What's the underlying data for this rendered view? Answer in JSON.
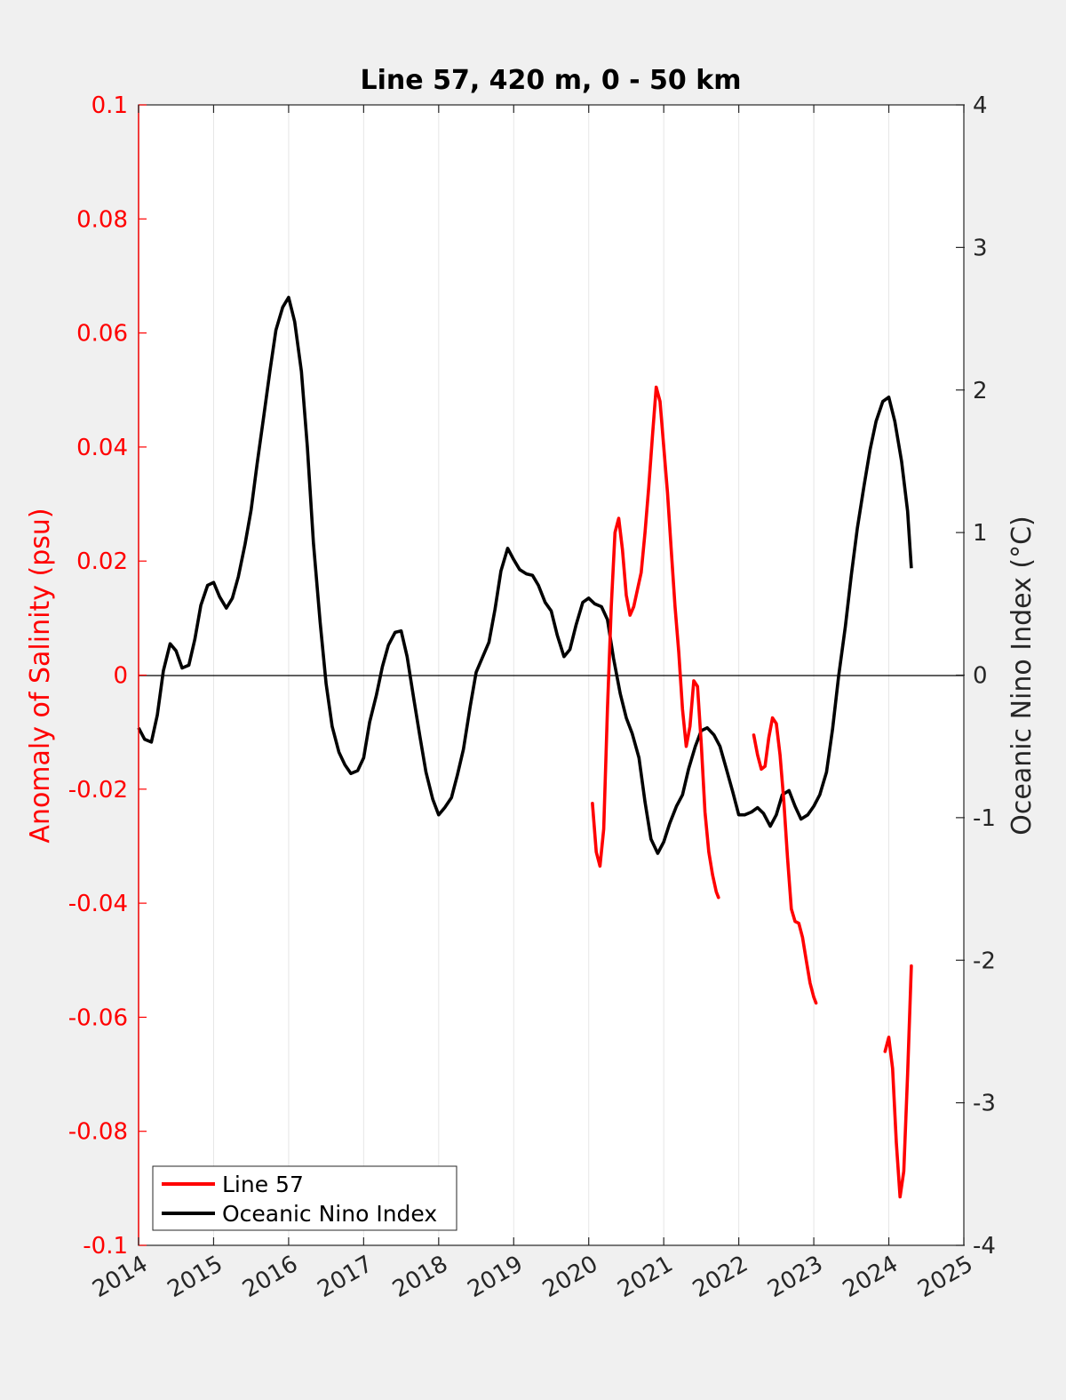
{
  "colors": {
    "background": "#f0f0f0",
    "plot_bg": "#ffffff",
    "line57": "#ff0000",
    "oni": "#000000",
    "grid": "#e6e6e6",
    "left_axis": "#ff0000",
    "right_axis": "#262626"
  },
  "chart_data": {
    "type": "line",
    "title": "Line 57, 420 m, 0 - 50 km",
    "xlabel": "",
    "ylabel_left": "Anomaly of Salinity (psu)",
    "ylabel_right": "Oceanic Nino Index (°C)",
    "xlim": [
      2014,
      2025
    ],
    "ylim_left": [
      -0.1,
      0.1
    ],
    "ylim_right": [
      -4,
      4
    ],
    "x_ticks": [
      "2014",
      "2015",
      "2016",
      "2017",
      "2018",
      "2019",
      "2020",
      "2021",
      "2022",
      "2023",
      "2024",
      "2025"
    ],
    "y_left_ticks": [
      "0.1",
      "0.08",
      "0.06",
      "0.04",
      "0.02",
      "0",
      "-0.02",
      "-0.04",
      "-0.06",
      "-0.08",
      "-0.1"
    ],
    "y_right_ticks": [
      "4",
      "3",
      "2",
      "1",
      "0",
      "-1",
      "-2",
      "-3",
      "-4"
    ],
    "grid": "vertical",
    "zero_line": true,
    "legend_position": "bottom-left",
    "series": [
      {
        "name": "Line 57",
        "axis": "left",
        "segments": [
          {
            "x": [
              2020.05,
              2020.1,
              2020.15,
              2020.2,
              2020.25,
              2020.3,
              2020.35,
              2020.4,
              2020.45,
              2020.5,
              2020.55,
              2020.6,
              2020.65,
              2020.7,
              2020.75,
              2020.8,
              2020.85,
              2020.9,
              2020.95,
              2021.0,
              2021.05,
              2021.1,
              2021.15,
              2021.2,
              2021.25,
              2021.3,
              2021.35,
              2021.4,
              2021.45,
              2021.5,
              2021.55,
              2021.6,
              2021.65,
              2021.7,
              2021.73
            ],
            "y": [
              -0.0225,
              -0.031,
              -0.0335,
              -0.027,
              -0.006,
              0.012,
              0.025,
              0.0275,
              0.022,
              0.014,
              0.0105,
              0.012,
              0.015,
              0.018,
              0.025,
              0.033,
              0.042,
              0.0505,
              0.048,
              0.04,
              0.032,
              0.022,
              0.012,
              0.004,
              -0.006,
              -0.0125,
              -0.009,
              -0.001,
              -0.002,
              -0.012,
              -0.024,
              -0.031,
              -0.035,
              -0.038,
              -0.039
            ]
          },
          {
            "x": [
              2022.2,
              2022.25,
              2022.3,
              2022.35,
              2022.4,
              2022.45,
              2022.5,
              2022.55,
              2022.6,
              2022.65,
              2022.7,
              2022.75,
              2022.8,
              2022.85,
              2022.9,
              2022.95,
              2023.0,
              2023.03
            ],
            "y": [
              -0.0105,
              -0.014,
              -0.0165,
              -0.016,
              -0.011,
              -0.0075,
              -0.0085,
              -0.014,
              -0.022,
              -0.032,
              -0.041,
              -0.0432,
              -0.0435,
              -0.046,
              -0.05,
              -0.054,
              -0.0565,
              -0.0575
            ]
          },
          {
            "x": [
              2023.95,
              2024.0,
              2024.05,
              2024.1,
              2024.15,
              2024.2,
              2024.25,
              2024.3
            ],
            "y": [
              -0.066,
              -0.0635,
              -0.069,
              -0.082,
              -0.0915,
              -0.087,
              -0.07,
              -0.051
            ]
          }
        ]
      },
      {
        "name": "Oceanic Nino Index",
        "axis": "right",
        "x": [
          2014.0,
          2014.08,
          2014.17,
          2014.25,
          2014.33,
          2014.42,
          2014.5,
          2014.58,
          2014.67,
          2014.75,
          2014.83,
          2014.92,
          2015.0,
          2015.08,
          2015.17,
          2015.25,
          2015.33,
          2015.42,
          2015.5,
          2015.58,
          2015.67,
          2015.75,
          2015.83,
          2015.92,
          2016.0,
          2016.08,
          2016.17,
          2016.25,
          2016.33,
          2016.42,
          2016.5,
          2016.58,
          2016.67,
          2016.75,
          2016.83,
          2016.92,
          2017.0,
          2017.08,
          2017.17,
          2017.25,
          2017.33,
          2017.42,
          2017.5,
          2017.58,
          2017.67,
          2017.75,
          2017.83,
          2017.92,
          2018.0,
          2018.08,
          2018.17,
          2018.25,
          2018.33,
          2018.42,
          2018.5,
          2018.58,
          2018.67,
          2018.75,
          2018.83,
          2018.92,
          2019.0,
          2019.08,
          2019.17,
          2019.25,
          2019.33,
          2019.42,
          2019.5,
          2019.58,
          2019.67,
          2019.75,
          2019.83,
          2019.92,
          2020.0,
          2020.08,
          2020.17,
          2020.25,
          2020.33,
          2020.42,
          2020.5,
          2020.58,
          2020.67,
          2020.75,
          2020.83,
          2020.92,
          2021.0,
          2021.08,
          2021.17,
          2021.25,
          2021.33,
          2021.42,
          2021.5,
          2021.58,
          2021.67,
          2021.75,
          2021.83,
          2021.92,
          2022.0,
          2022.08,
          2022.17,
          2022.25,
          2022.33,
          2022.42,
          2022.5,
          2022.58,
          2022.67,
          2022.75,
          2022.83,
          2022.92,
          2023.0,
          2023.08,
          2023.17,
          2023.25,
          2023.33,
          2023.42,
          2023.5,
          2023.58,
          2023.67,
          2023.75,
          2023.83,
          2023.92,
          2024.0,
          2024.08,
          2024.17,
          2024.25,
          2024.3
        ],
        "y": [
          -0.37,
          -0.45,
          -0.47,
          -0.28,
          0.03,
          0.22,
          0.17,
          0.05,
          0.07,
          0.25,
          0.49,
          0.63,
          0.65,
          0.55,
          0.47,
          0.54,
          0.69,
          0.92,
          1.16,
          1.48,
          1.82,
          2.13,
          2.42,
          2.58,
          2.65,
          2.48,
          2.13,
          1.6,
          0.93,
          0.37,
          -0.06,
          -0.36,
          -0.54,
          -0.63,
          -0.69,
          -0.67,
          -0.58,
          -0.33,
          -0.14,
          0.06,
          0.21,
          0.3,
          0.31,
          0.13,
          -0.17,
          -0.43,
          -0.68,
          -0.87,
          -0.98,
          -0.93,
          -0.86,
          -0.7,
          -0.52,
          -0.22,
          0.02,
          0.12,
          0.23,
          0.46,
          0.73,
          0.89,
          0.81,
          0.74,
          0.71,
          0.7,
          0.63,
          0.51,
          0.45,
          0.28,
          0.13,
          0.18,
          0.35,
          0.51,
          0.54,
          0.5,
          0.48,
          0.39,
          0.12,
          -0.13,
          -0.3,
          -0.41,
          -0.58,
          -0.89,
          -1.15,
          -1.25,
          -1.17,
          -1.04,
          -0.92,
          -0.84,
          -0.66,
          -0.5,
          -0.39,
          -0.37,
          -0.42,
          -0.5,
          -0.65,
          -0.82,
          -0.98,
          -0.98,
          -0.96,
          -0.93,
          -0.97,
          -1.06,
          -0.98,
          -0.84,
          -0.81,
          -0.92,
          -1.01,
          -0.98,
          -0.92,
          -0.84,
          -0.68,
          -0.38,
          -0.01,
          0.34,
          0.7,
          1.03,
          1.33,
          1.58,
          1.78,
          1.92,
          1.95,
          1.78,
          1.5,
          1.15,
          0.75
        ]
      }
    ]
  }
}
